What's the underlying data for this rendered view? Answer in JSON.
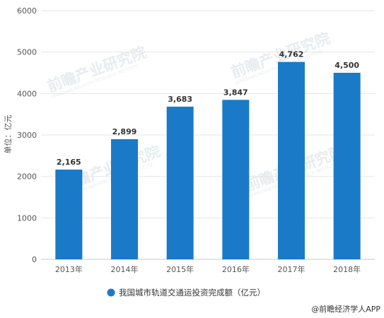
{
  "chart_data": {
    "type": "bar",
    "categories": [
      "2013年",
      "2014年",
      "2015年",
      "2016年",
      "2017年",
      "2018年"
    ],
    "values": [
      2165,
      2899,
      3683,
      3847,
      4762,
      4500
    ],
    "value_labels": [
      "2,165",
      "2,899",
      "3,683",
      "3,847",
      "4,762",
      "4,500"
    ],
    "ylabel": "单位：亿元",
    "ylim": [
      0,
      6000
    ],
    "yticks": [
      0,
      1000,
      2000,
      3000,
      4000,
      5000,
      6000
    ],
    "grid": true,
    "legend": [
      "我国城市轨道交通运投资完成额（亿元）"
    ],
    "legend_position": "bottom",
    "bar_color": "#1a7ac8"
  },
  "source_text": "@前瞻经济学人APP",
  "watermark": {
    "text": "前瞻产业研究院",
    "sub": "QIANZHAN INDUSTRY RESEARCH INSTITUTE"
  }
}
